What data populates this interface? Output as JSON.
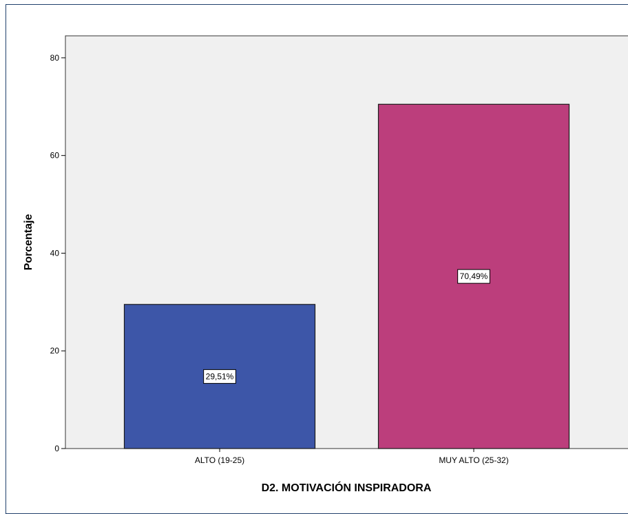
{
  "chart_data": {
    "type": "bar",
    "categories": [
      "ALTO (19-25)",
      "MUY ALTO (25-32)"
    ],
    "values": [
      29.51,
      70.49
    ],
    "data_labels": [
      "29,51%",
      "70,49%"
    ],
    "colors": [
      "#3d56a8",
      "#bc3e7c"
    ],
    "title": "",
    "xlabel": "D2. MOTIVACIÓN INSPIRADORA",
    "ylabel": "Porcentaje",
    "ylim": [
      0,
      84.5
    ],
    "yticks": [
      0,
      20,
      40,
      60,
      80
    ],
    "ytick_labels": [
      "0",
      "20",
      "40",
      "60",
      "80"
    ],
    "grid": false,
    "plot_background": "#f0f0f0"
  }
}
